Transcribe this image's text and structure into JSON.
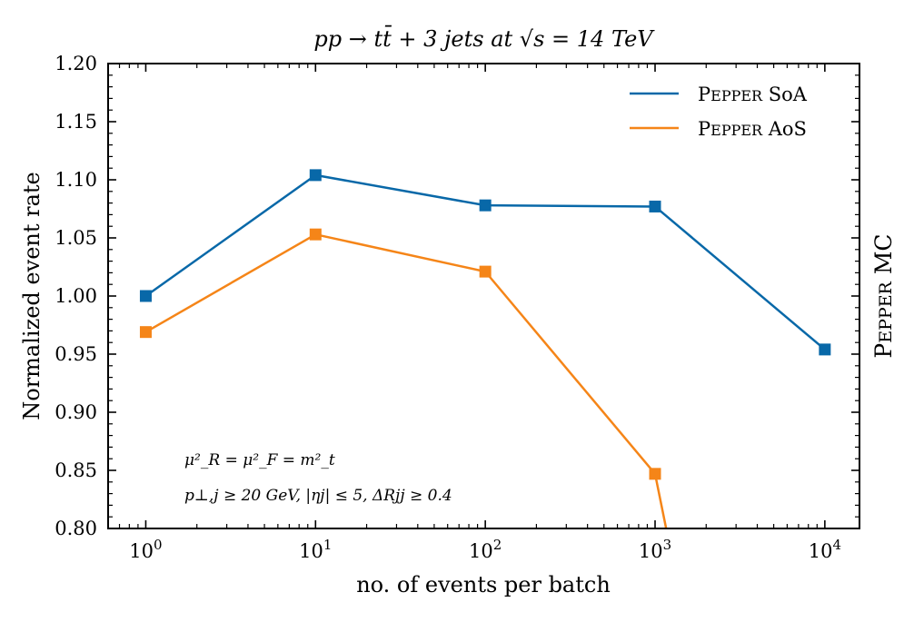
{
  "chart_data": {
    "type": "line",
    "title": "pp → tt̄ + 3 jets at √s = 14 TeV",
    "xlabel": "no. of events per batch",
    "ylabel": "Normalized event rate",
    "xscale": "log",
    "xlim": [
      0.6,
      16000
    ],
    "ylim": [
      0.8,
      1.2
    ],
    "x_ticks": [
      1,
      10,
      100,
      1000,
      10000
    ],
    "x_tick_labels": [
      {
        "base": "10",
        "exp": "0"
      },
      {
        "base": "10",
        "exp": "1"
      },
      {
        "base": "10",
        "exp": "2"
      },
      {
        "base": "10",
        "exp": "3"
      },
      {
        "base": "10",
        "exp": "4"
      }
    ],
    "y_ticks": [
      0.8,
      0.85,
      0.9,
      0.95,
      1.0,
      1.05,
      1.1,
      1.15,
      1.2
    ],
    "y_tick_labels": [
      "0.80",
      "0.85",
      "0.90",
      "0.95",
      "1.00",
      "1.05",
      "1.10",
      "1.15",
      "1.20"
    ],
    "series": [
      {
        "name": "Pepper SoA",
        "color": "#0868a8",
        "points": [
          {
            "x": 1,
            "y": 1.0
          },
          {
            "x": 10,
            "y": 1.104
          },
          {
            "x": 100,
            "y": 1.078
          },
          {
            "x": 1000,
            "y": 1.077
          },
          {
            "x": 10000,
            "y": 0.954
          }
        ]
      },
      {
        "name": "Pepper AoS",
        "color": "#f58518",
        "points": [
          {
            "x": 1,
            "y": 0.969
          },
          {
            "x": 10,
            "y": 1.053
          },
          {
            "x": 100,
            "y": 1.021
          },
          {
            "x": 1000,
            "y": 0.847
          }
        ],
        "tail": {
          "x": 1200,
          "y": 0.79
        }
      }
    ],
    "legend": {
      "placement": "top-right",
      "entries": [
        {
          "main": "P",
          "small": "EPPER",
          "rest": " SoA"
        },
        {
          "main": "P",
          "small": "EPPER",
          "rest": " AoS"
        }
      ]
    },
    "side_label": {
      "main": "P",
      "small": "EPPER",
      "rest": " MC"
    },
    "annotations": [
      "μ²_R = μ²_F = m²_t",
      "p⊥,j ≥ 20 GeV, |ηj| ≤ 5, ΔRjj ≥ 0.4"
    ]
  }
}
